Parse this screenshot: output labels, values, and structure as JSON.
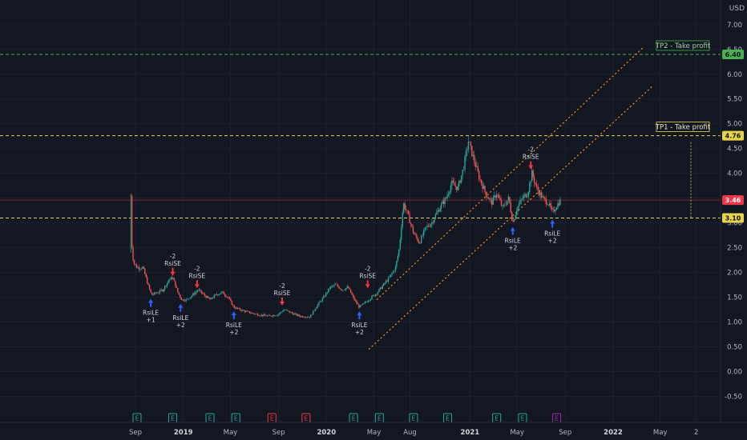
{
  "chart_data": {
    "type": "candlestick",
    "currency": "USD",
    "y_ticks": [
      "7.00",
      "6.50",
      "6.00",
      "5.50",
      "5.00",
      "4.50",
      "4.00",
      "3.50",
      "3.00",
      "2.50",
      "2.00",
      "1.50",
      "1.00",
      "0.50",
      "0.00",
      "-0.50"
    ],
    "ylim": [
      -0.5,
      7.0
    ],
    "x_ticks": [
      {
        "label": "Sep",
        "date": "2018-09-01"
      },
      {
        "label": "2019",
        "date": "2019-01-01"
      },
      {
        "label": "May",
        "date": "2019-05-01"
      },
      {
        "label": "Sep",
        "date": "2019-09-01"
      },
      {
        "label": "2020",
        "date": "2020-01-01"
      },
      {
        "label": "May",
        "date": "2020-05-01"
      },
      {
        "label": "Aug",
        "date": "2020-08-01"
      },
      {
        "label": "2021",
        "date": "2021-01-01"
      },
      {
        "label": "May",
        "date": "2021-05-01"
      },
      {
        "label": "Sep",
        "date": "2021-09-01"
      },
      {
        "label": "2022",
        "date": "2022-01-01"
      },
      {
        "label": "May",
        "date": "2022-05-01"
      },
      {
        "label": "2",
        "date": "2022-08-01"
      }
    ],
    "price_line": {
      "value": 3.46,
      "label": "3.46",
      "color": "#f23645"
    },
    "horizontal_lines": [
      {
        "name": "TP2",
        "value": 6.4,
        "label": "6.40",
        "note": "TP2 - Take profit",
        "color": "#4caf50",
        "style": "dashed"
      },
      {
        "name": "TP1",
        "value": 4.76,
        "label": "4.76",
        "note": "TP1 - Take profit",
        "color": "#e8d44a",
        "style": "dashed"
      },
      {
        "name": "Entry",
        "value": 3.1,
        "label": "3.10",
        "note": "",
        "color": "#e8d44a",
        "style": "dashed"
      }
    ],
    "trendlines": [
      {
        "start": {
          "date": "2020-05-08",
          "value": 1.45
        },
        "end": {
          "date": "2022-03-20",
          "value": 6.55
        },
        "color": "#f7931a"
      },
      {
        "start": {
          "date": "2020-04-18",
          "value": 0.45
        },
        "end": {
          "date": "2022-04-10",
          "value": 5.75
        },
        "color": "#f7931a"
      }
    ],
    "signals": [
      {
        "date": "2018-10-10",
        "value": 1.5,
        "side": "long",
        "lines": [
          "RsiLE",
          "+1"
        ]
      },
      {
        "date": "2018-12-05",
        "value": 1.9,
        "side": "short",
        "lines": [
          "-2",
          "RsiSE"
        ]
      },
      {
        "date": "2018-12-25",
        "value": 1.4,
        "side": "long",
        "lines": [
          "RsiLE",
          "+2"
        ]
      },
      {
        "date": "2019-02-05",
        "value": 1.65,
        "side": "short",
        "lines": [
          "-2",
          "RsiSE"
        ]
      },
      {
        "date": "2019-05-10",
        "value": 1.25,
        "side": "long",
        "lines": [
          "RsiLE",
          "+2"
        ]
      },
      {
        "date": "2019-09-10",
        "value": 1.3,
        "side": "short",
        "lines": [
          "-2",
          "RsiSE"
        ]
      },
      {
        "date": "2020-03-25",
        "value": 1.25,
        "side": "long",
        "lines": [
          "RsiLE",
          "+2"
        ]
      },
      {
        "date": "2020-04-15",
        "value": 1.65,
        "side": "short",
        "lines": [
          "-2",
          "RsiSE"
        ]
      },
      {
        "date": "2021-04-20",
        "value": 2.95,
        "side": "long",
        "lines": [
          "RsiLE",
          "+2"
        ]
      },
      {
        "date": "2021-06-05",
        "value": 4.05,
        "side": "short",
        "lines": [
          "-2",
          "RsiSE"
        ]
      },
      {
        "date": "2021-07-30",
        "value": 3.1,
        "side": "long",
        "lines": [
          "RsiLE",
          "+2"
        ]
      }
    ],
    "events": [
      {
        "date": "2018-09-05",
        "label": "E",
        "color": "#26a69a"
      },
      {
        "date": "2018-12-05",
        "label": "E",
        "color": "#26a69a"
      },
      {
        "date": "2019-03-10",
        "label": "E",
        "color": "#26a69a"
      },
      {
        "date": "2019-05-15",
        "label": "E",
        "color": "#26a69a"
      },
      {
        "date": "2019-08-15",
        "label": "E",
        "color": "#f23645"
      },
      {
        "date": "2019-11-10",
        "label": "E",
        "color": "#f23645"
      },
      {
        "date": "2020-03-10",
        "label": "E",
        "color": "#26a69a"
      },
      {
        "date": "2020-05-15",
        "label": "E",
        "color": "#26a69a"
      },
      {
        "date": "2020-08-10",
        "label": "E",
        "color": "#26a69a"
      },
      {
        "date": "2020-11-05",
        "label": "E",
        "color": "#26a69a"
      },
      {
        "date": "2021-03-10",
        "label": "E",
        "color": "#26a69a"
      },
      {
        "date": "2021-05-15",
        "label": "E",
        "color": "#26a69a"
      },
      {
        "date": "2021-08-10",
        "label": "E",
        "color": "#9c27b0"
      }
    ],
    "series": [
      {
        "date": "2018-08-20",
        "value": 3.55
      },
      {
        "date": "2018-08-22",
        "value": 2.6
      },
      {
        "date": "2018-08-27",
        "value": 2.2
      },
      {
        "date": "2018-09-05",
        "value": 2.1
      },
      {
        "date": "2018-09-20",
        "value": 2.1
      },
      {
        "date": "2018-10-05",
        "value": 1.7
      },
      {
        "date": "2018-10-12",
        "value": 1.55
      },
      {
        "date": "2018-10-28",
        "value": 1.6
      },
      {
        "date": "2018-11-10",
        "value": 1.65
      },
      {
        "date": "2018-11-25",
        "value": 1.85
      },
      {
        "date": "2018-12-05",
        "value": 1.9
      },
      {
        "date": "2018-12-18",
        "value": 1.6
      },
      {
        "date": "2018-12-28",
        "value": 1.45
      },
      {
        "date": "2019-01-10",
        "value": 1.45
      },
      {
        "date": "2019-01-25",
        "value": 1.55
      },
      {
        "date": "2019-02-08",
        "value": 1.65
      },
      {
        "date": "2019-02-22",
        "value": 1.55
      },
      {
        "date": "2019-03-10",
        "value": 1.45
      },
      {
        "date": "2019-03-25",
        "value": 1.55
      },
      {
        "date": "2019-04-10",
        "value": 1.6
      },
      {
        "date": "2019-04-25",
        "value": 1.5
      },
      {
        "date": "2019-05-10",
        "value": 1.3
      },
      {
        "date": "2019-05-25",
        "value": 1.25
      },
      {
        "date": "2019-06-15",
        "value": 1.2
      },
      {
        "date": "2019-07-10",
        "value": 1.15
      },
      {
        "date": "2019-08-05",
        "value": 1.12
      },
      {
        "date": "2019-08-30",
        "value": 1.15
      },
      {
        "date": "2019-09-15",
        "value": 1.25
      },
      {
        "date": "2019-10-05",
        "value": 1.18
      },
      {
        "date": "2019-10-25",
        "value": 1.12
      },
      {
        "date": "2019-11-20",
        "value": 1.1
      },
      {
        "date": "2019-12-05",
        "value": 1.3
      },
      {
        "date": "2019-12-25",
        "value": 1.5
      },
      {
        "date": "2020-01-10",
        "value": 1.7
      },
      {
        "date": "2020-01-25",
        "value": 1.75
      },
      {
        "date": "2020-02-10",
        "value": 1.65
      },
      {
        "date": "2020-02-25",
        "value": 1.7
      },
      {
        "date": "2020-03-12",
        "value": 1.45
      },
      {
        "date": "2020-03-25",
        "value": 1.3
      },
      {
        "date": "2020-04-10",
        "value": 1.4
      },
      {
        "date": "2020-04-25",
        "value": 1.5
      },
      {
        "date": "2020-05-10",
        "value": 1.6
      },
      {
        "date": "2020-05-25",
        "value": 1.75
      },
      {
        "date": "2020-06-10",
        "value": 1.9
      },
      {
        "date": "2020-06-25",
        "value": 2.1
      },
      {
        "date": "2020-07-05",
        "value": 2.5
      },
      {
        "date": "2020-07-15",
        "value": 3.4
      },
      {
        "date": "2020-07-25",
        "value": 3.2
      },
      {
        "date": "2020-08-10",
        "value": 2.8
      },
      {
        "date": "2020-08-25",
        "value": 2.6
      },
      {
        "date": "2020-09-10",
        "value": 2.9
      },
      {
        "date": "2020-09-25",
        "value": 3.0
      },
      {
        "date": "2020-10-15",
        "value": 3.3
      },
      {
        "date": "2020-11-01",
        "value": 3.5
      },
      {
        "date": "2020-11-15",
        "value": 3.8
      },
      {
        "date": "2020-12-01",
        "value": 3.7
      },
      {
        "date": "2020-12-15",
        "value": 4.1
      },
      {
        "date": "2020-12-28",
        "value": 4.65
      },
      {
        "date": "2021-01-10",
        "value": 4.3
      },
      {
        "date": "2021-01-25",
        "value": 3.9
      },
      {
        "date": "2021-02-10",
        "value": 3.6
      },
      {
        "date": "2021-02-25",
        "value": 3.4
      },
      {
        "date": "2021-03-10",
        "value": 3.6
      },
      {
        "date": "2021-03-25",
        "value": 3.3
      },
      {
        "date": "2021-04-10",
        "value": 3.5
      },
      {
        "date": "2021-04-20",
        "value": 3.0
      },
      {
        "date": "2021-05-01",
        "value": 3.3
      },
      {
        "date": "2021-05-15",
        "value": 3.5
      },
      {
        "date": "2021-05-28",
        "value": 3.6
      },
      {
        "date": "2021-06-08",
        "value": 4.0
      },
      {
        "date": "2021-06-20",
        "value": 3.7
      },
      {
        "date": "2021-07-05",
        "value": 3.5
      },
      {
        "date": "2021-07-20",
        "value": 3.4
      },
      {
        "date": "2021-07-30",
        "value": 3.2
      },
      {
        "date": "2021-08-10",
        "value": 3.35
      },
      {
        "date": "2021-08-20",
        "value": 3.46
      }
    ]
  }
}
